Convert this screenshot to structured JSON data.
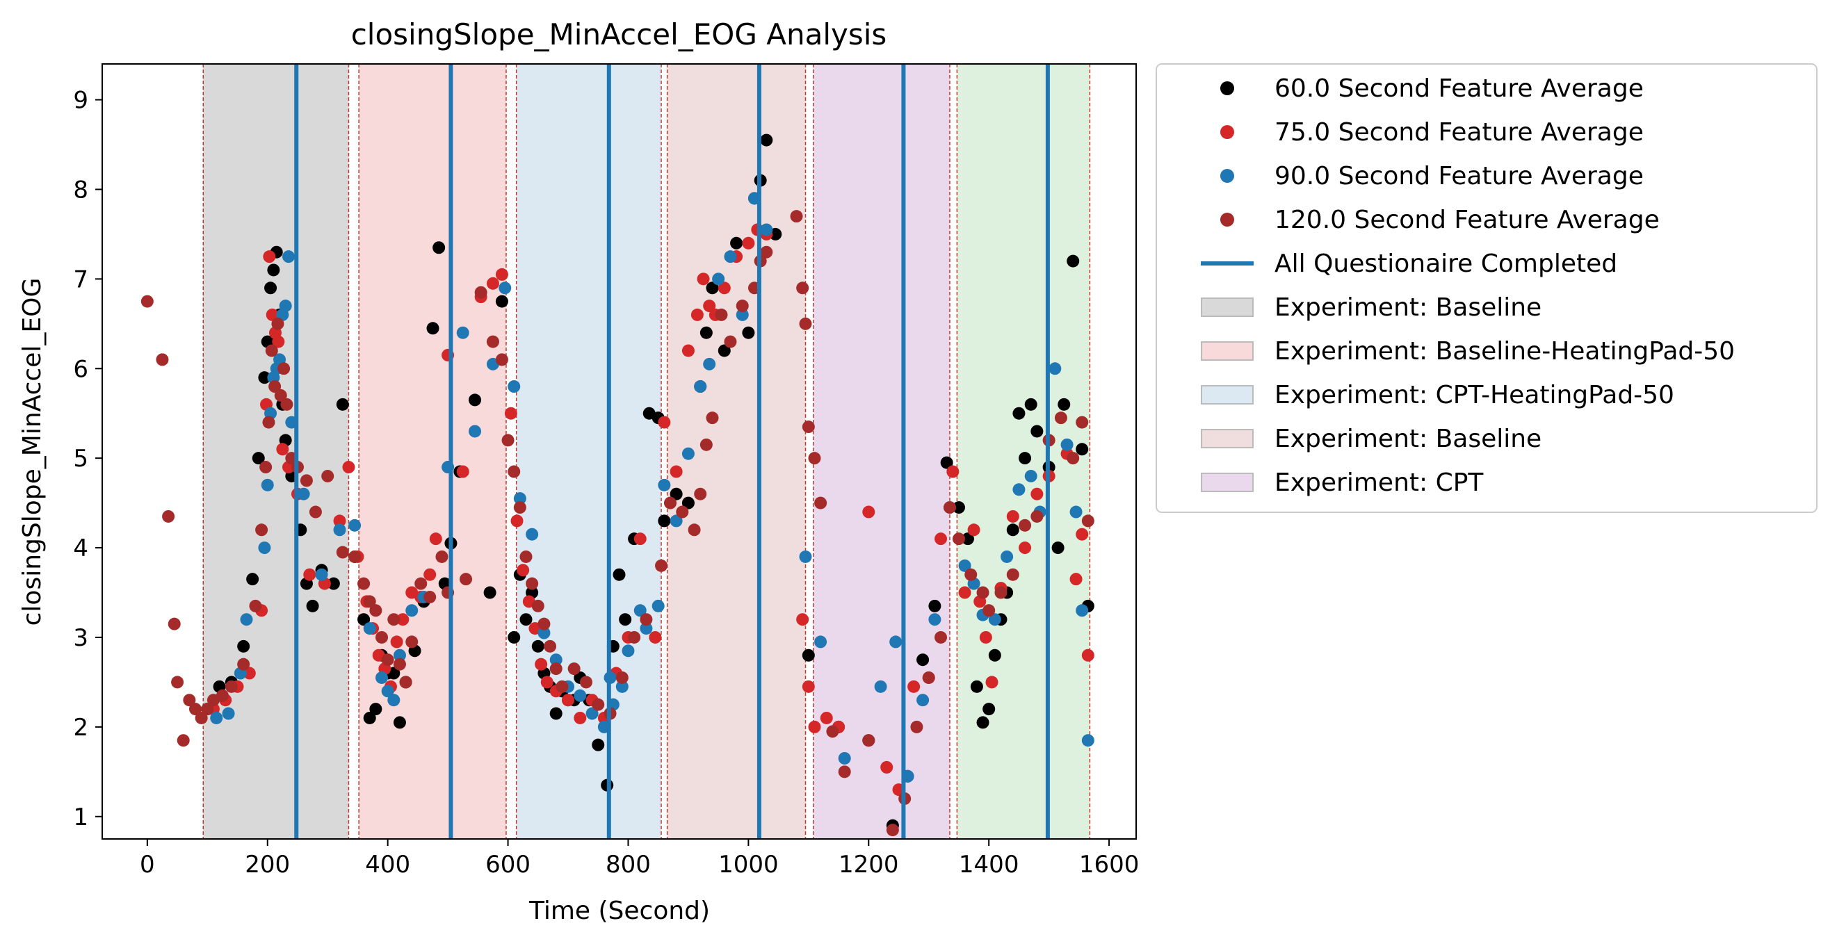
{
  "chart_data": {
    "type": "scatter",
    "title": "closingSlope_MinAccel_EOG Analysis",
    "xlabel": "Time (Second)",
    "ylabel": "closingSlope_MinAccel_EOG",
    "xlim": [
      -75,
      1645
    ],
    "ylim": [
      0.75,
      9.4
    ],
    "xticks": [
      0,
      200,
      400,
      600,
      800,
      1000,
      1200,
      1400,
      1600
    ],
    "yticks": [
      1,
      2,
      3,
      4,
      5,
      6,
      7,
      8,
      9
    ],
    "grid": false,
    "legend_position": "outside-right",
    "legend": [
      {
        "label": "60.0 Second Feature Average",
        "kind": "marker",
        "color": "#000000"
      },
      {
        "label": "75.0 Second Feature Average",
        "kind": "marker",
        "color": "#d62728"
      },
      {
        "label": "90.0 Second Feature Average",
        "kind": "marker",
        "color": "#1f77b4"
      },
      {
        "label": "120.0 Second Feature Average",
        "kind": "marker",
        "color": "#a52a2a"
      },
      {
        "label": "All Questionaire Completed",
        "kind": "line",
        "color": "#1f77b4"
      },
      {
        "label": "Experiment: Baseline",
        "kind": "patch",
        "color": "#d9d9d9"
      },
      {
        "label": "Experiment: Baseline-HeatingPad-50",
        "kind": "patch",
        "color": "#f8dada"
      },
      {
        "label": "Experiment: CPT-HeatingPad-50",
        "kind": "patch",
        "color": "#dce8f2"
      },
      {
        "label": "Experiment: Baseline",
        "kind": "patch",
        "color": "#f0dede"
      },
      {
        "label": "Experiment: CPT",
        "kind": "patch",
        "color": "#ead9ec"
      }
    ],
    "regions": [
      {
        "start": 93,
        "end": 335,
        "color": "#d9d9d9"
      },
      {
        "start": 352,
        "end": 597,
        "color": "#f8dada"
      },
      {
        "start": 614,
        "end": 855,
        "color": "#dce8f2"
      },
      {
        "start": 865,
        "end": 1095,
        "color": "#f0dede"
      },
      {
        "start": 1108,
        "end": 1335,
        "color": "#ead9ec"
      },
      {
        "start": 1347,
        "end": 1568,
        "color": "#def0de"
      }
    ],
    "boundaries": [
      93,
      335,
      352,
      597,
      614,
      855,
      865,
      1095,
      1108,
      1335,
      1347,
      1568
    ],
    "questionnaire_completed": [
      248,
      505,
      768,
      1018,
      1258,
      1498
    ],
    "series": [
      {
        "name": "60.0 Second Feature Average",
        "color": "#000000",
        "x": [
          100,
          120,
          140,
          160,
          175,
          185,
          195,
          200,
          205,
          210,
          215,
          220,
          225,
          230,
          240,
          255,
          265,
          275,
          290,
          310,
          325,
          345,
          360,
          370,
          380,
          390,
          400,
          410,
          420,
          430,
          445,
          460,
          475,
          485,
          495,
          505,
          520,
          545,
          570,
          590,
          610,
          620,
          630,
          640,
          650,
          660,
          670,
          680,
          690,
          700,
          710,
          720,
          735,
          750,
          765,
          775,
          785,
          795,
          810,
          835,
          850,
          860,
          880,
          900,
          920,
          930,
          940,
          960,
          980,
          1000,
          1010,
          1020,
          1030,
          1045,
          1100,
          1150,
          1200,
          1240,
          1265,
          1290,
          1310,
          1330,
          1350,
          1365,
          1380,
          1390,
          1400,
          1410,
          1420,
          1430,
          1440,
          1450,
          1460,
          1470,
          1480,
          1500,
          1515,
          1525,
          1540,
          1555,
          1565
        ],
        "y": [
          2.2,
          2.45,
          2.5,
          2.9,
          3.65,
          5.0,
          5.9,
          6.3,
          6.9,
          7.1,
          7.3,
          6.6,
          5.6,
          5.2,
          4.8,
          4.2,
          3.6,
          3.35,
          3.75,
          3.6,
          5.6,
          3.9,
          3.2,
          2.1,
          2.2,
          2.8,
          2.6,
          2.6,
          2.05,
          2.5,
          2.85,
          3.4,
          6.45,
          7.35,
          3.6,
          4.05,
          4.85,
          5.65,
          3.5,
          6.75,
          3.0,
          3.7,
          3.2,
          3.5,
          2.9,
          2.6,
          2.45,
          2.15,
          2.4,
          2.3,
          2.3,
          2.55,
          2.3,
          1.8,
          1.35,
          2.9,
          3.7,
          3.2,
          4.1,
          5.5,
          5.45,
          4.3,
          4.6,
          4.5,
          5.8,
          6.4,
          6.9,
          6.2,
          7.4,
          6.4,
          7.9,
          8.1,
          8.55,
          7.5,
          2.8,
          2.0,
          1.85,
          0.9,
          1.45,
          2.75,
          3.35,
          4.95,
          4.45,
          4.1,
          2.45,
          2.05,
          2.2,
          2.8,
          3.2,
          3.5,
          4.2,
          5.5,
          5.0,
          5.6,
          5.3,
          4.9,
          4.0,
          5.6,
          7.2,
          5.1,
          3.35
        ]
      },
      {
        "name": "75.0 Second Feature Average",
        "color": "#d62728",
        "x": [
          110,
          130,
          150,
          170,
          190,
          198,
          203,
          208,
          213,
          218,
          225,
          235,
          250,
          270,
          295,
          320,
          335,
          350,
          365,
          375,
          385,
          395,
          405,
          415,
          425,
          440,
          455,
          470,
          480,
          500,
          525,
          555,
          575,
          590,
          605,
          615,
          625,
          635,
          645,
          655,
          665,
          680,
          700,
          720,
          740,
          760,
          780,
          800,
          820,
          845,
          860,
          880,
          900,
          915,
          925,
          935,
          945,
          960,
          980,
          1000,
          1015,
          1030,
          1090,
          1100,
          1110,
          1130,
          1150,
          1200,
          1230,
          1250,
          1275,
          1300,
          1320,
          1340,
          1360,
          1375,
          1385,
          1395,
          1405,
          1420,
          1440,
          1460,
          1480,
          1500,
          1530,
          1545,
          1555,
          1565
        ],
        "y": [
          2.2,
          2.3,
          2.45,
          2.6,
          3.3,
          5.6,
          7.25,
          6.6,
          6.4,
          6.3,
          5.1,
          4.9,
          4.6,
          3.7,
          3.6,
          4.3,
          4.9,
          3.9,
          3.4,
          3.1,
          2.8,
          2.65,
          2.45,
          2.95,
          3.2,
          3.5,
          3.45,
          3.7,
          4.1,
          6.15,
          4.85,
          6.8,
          6.95,
          7.05,
          5.5,
          4.3,
          3.75,
          3.4,
          3.1,
          2.7,
          2.5,
          2.4,
          2.3,
          2.1,
          2.3,
          2.1,
          2.6,
          3.0,
          4.1,
          3.0,
          5.4,
          4.85,
          6.2,
          6.6,
          7.0,
          6.7,
          6.6,
          6.9,
          7.25,
          7.4,
          7.55,
          7.5,
          3.2,
          2.45,
          2.0,
          2.1,
          2.0,
          4.4,
          1.55,
          1.3,
          2.45,
          2.55,
          4.1,
          4.85,
          3.5,
          4.2,
          3.4,
          3.0,
          2.5,
          3.55,
          4.35,
          4.0,
          4.6,
          4.8,
          5.05,
          3.65,
          4.15,
          2.8
        ]
      },
      {
        "name": "90.0 Second Feature Average",
        "color": "#1f77b4",
        "x": [
          115,
          135,
          155,
          165,
          195,
          200,
          205,
          210,
          215,
          220,
          225,
          230,
          235,
          240,
          260,
          290,
          320,
          345,
          370,
          390,
          400,
          410,
          420,
          440,
          460,
          500,
          525,
          545,
          575,
          595,
          610,
          620,
          640,
          660,
          680,
          700,
          720,
          740,
          760,
          770,
          775,
          790,
          800,
          820,
          830,
          850,
          860,
          880,
          900,
          920,
          935,
          950,
          970,
          990,
          1010,
          1030,
          1095,
          1120,
          1160,
          1220,
          1245,
          1265,
          1290,
          1310,
          1335,
          1360,
          1375,
          1390,
          1410,
          1430,
          1450,
          1470,
          1485,
          1510,
          1530,
          1545,
          1555,
          1565
        ],
        "y": [
          2.1,
          2.15,
          2.6,
          3.2,
          4.0,
          4.7,
          5.5,
          5.9,
          6.0,
          6.1,
          6.6,
          6.7,
          7.25,
          5.4,
          4.6,
          3.7,
          4.2,
          4.25,
          3.1,
          2.55,
          2.4,
          2.3,
          2.8,
          3.3,
          3.45,
          4.9,
          6.4,
          5.3,
          6.05,
          6.9,
          5.8,
          4.55,
          4.15,
          3.05,
          2.75,
          2.45,
          2.35,
          2.15,
          2.0,
          2.55,
          2.25,
          2.45,
          2.85,
          3.3,
          3.1,
          3.35,
          4.7,
          4.3,
          5.05,
          5.8,
          6.05,
          7.0,
          7.25,
          6.6,
          7.9,
          7.55,
          3.9,
          2.95,
          1.65,
          2.45,
          2.95,
          1.45,
          2.3,
          3.2,
          4.45,
          3.8,
          3.6,
          3.25,
          3.2,
          3.9,
          4.65,
          4.8,
          4.4,
          6.0,
          5.15,
          4.4,
          3.3,
          1.85
        ]
      },
      {
        "name": "120.0 Second Feature Average",
        "color": "#a52a2a",
        "x": [
          0,
          25,
          35,
          45,
          50,
          60,
          70,
          80,
          90,
          100,
          110,
          125,
          140,
          160,
          180,
          190,
          197,
          202,
          207,
          212,
          217,
          222,
          227,
          232,
          240,
          250,
          265,
          280,
          300,
          325,
          345,
          360,
          370,
          380,
          390,
          400,
          410,
          420,
          430,
          440,
          455,
          470,
          490,
          500,
          530,
          555,
          575,
          590,
          600,
          610,
          620,
          630,
          640,
          650,
          660,
          670,
          680,
          690,
          710,
          730,
          750,
          770,
          790,
          810,
          830,
          855,
          870,
          890,
          910,
          920,
          930,
          940,
          955,
          970,
          990,
          1010,
          1020,
          1030,
          1080,
          1090,
          1095,
          1100,
          1110,
          1120,
          1140,
          1160,
          1200,
          1240,
          1260,
          1280,
          1300,
          1320,
          1335,
          1350,
          1370,
          1390,
          1400,
          1420,
          1440,
          1460,
          1480,
          1500,
          1520,
          1540,
          1555,
          1565
        ],
        "y": [
          6.75,
          6.1,
          4.35,
          3.15,
          2.5,
          1.85,
          2.3,
          2.2,
          2.1,
          2.2,
          2.3,
          2.35,
          2.45,
          2.7,
          3.35,
          4.2,
          4.9,
          5.4,
          6.2,
          5.8,
          6.5,
          5.7,
          6.0,
          5.6,
          5.0,
          4.9,
          4.75,
          4.4,
          4.8,
          3.95,
          3.9,
          3.6,
          3.4,
          3.3,
          3.0,
          2.75,
          3.2,
          2.7,
          2.5,
          2.95,
          3.6,
          3.45,
          3.9,
          3.5,
          3.65,
          6.85,
          6.3,
          6.1,
          5.2,
          4.85,
          4.45,
          3.9,
          3.6,
          3.35,
          3.15,
          2.9,
          2.65,
          2.45,
          2.65,
          2.5,
          2.25,
          2.15,
          2.55,
          3.0,
          3.2,
          3.8,
          4.5,
          4.4,
          4.2,
          4.6,
          5.15,
          5.45,
          6.6,
          6.3,
          6.7,
          6.9,
          7.2,
          7.3,
          7.7,
          6.9,
          6.5,
          5.35,
          5.0,
          4.5,
          1.95,
          1.5,
          1.85,
          0.85,
          1.2,
          2.0,
          2.55,
          3.0,
          4.45,
          4.1,
          3.7,
          3.5,
          3.3,
          3.5,
          3.7,
          4.25,
          4.35,
          5.2,
          5.45,
          5.0,
          5.4,
          4.3
        ]
      }
    ]
  }
}
